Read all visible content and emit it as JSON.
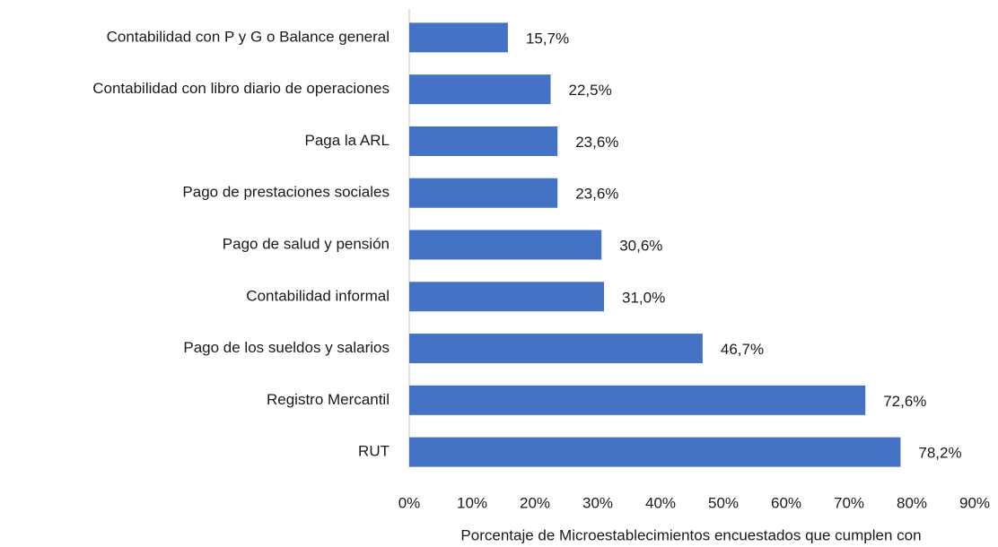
{
  "chart_data": {
    "type": "bar",
    "orientation": "horizontal",
    "x_label": "Porcentaje de Microestablecimientos encuestados que cumplen con",
    "categories": [
      "Contabilidad con P y G o Balance general",
      "Contabilidad con libro diario de operaciones",
      "Paga la ARL",
      "Pago de prestaciones sociales",
      "Pago de salud y pensión",
      "Contabilidad informal",
      "Pago de los sueldos y salarios",
      "Registro Mercantil",
      "RUT"
    ],
    "values": [
      15.7,
      22.5,
      23.6,
      23.6,
      30.6,
      31.0,
      46.7,
      72.6,
      78.2
    ],
    "value_labels": [
      "15,7%",
      "22,5%",
      "23,6%",
      "23,6%",
      "30,6%",
      "31,0%",
      "46,7%",
      "72,6%",
      "78,2%"
    ],
    "color": "#4472c4",
    "xlim": [
      0,
      90
    ],
    "xticks": [
      {
        "value": 0,
        "label": "0%"
      },
      {
        "value": 10,
        "label": "10%"
      },
      {
        "value": 20,
        "label": "20%"
      },
      {
        "value": 30,
        "label": "30%"
      },
      {
        "value": 40,
        "label": "40%"
      },
      {
        "value": 50,
        "label": "50%"
      },
      {
        "value": 60,
        "label": "60%"
      },
      {
        "value": 70,
        "label": "70%"
      },
      {
        "value": 80,
        "label": "80%"
      },
      {
        "value": 90,
        "label": "90%"
      }
    ],
    "grid": false
  }
}
